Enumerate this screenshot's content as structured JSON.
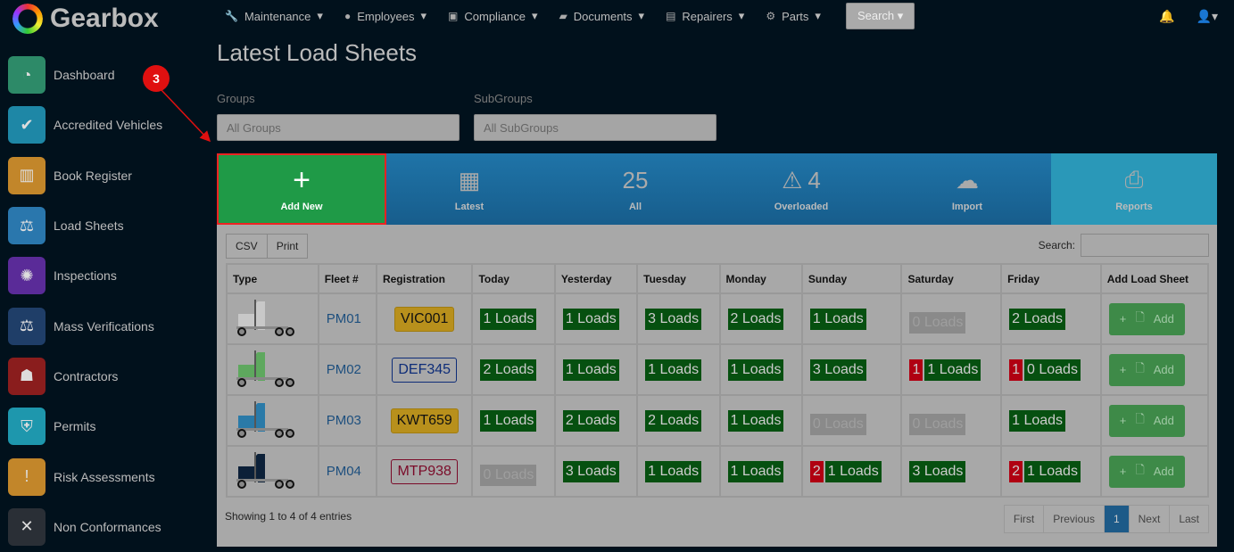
{
  "app": {
    "name": "Gearbox"
  },
  "topnav": [
    {
      "icon": "wrench-icon",
      "glyph": "🔧",
      "label": "Maintenance"
    },
    {
      "icon": "user-icon",
      "glyph": "●",
      "label": "Employees"
    },
    {
      "icon": "calendar-check-icon",
      "glyph": "▣",
      "label": "Compliance"
    },
    {
      "icon": "folder-icon",
      "glyph": "▰",
      "label": "Documents"
    },
    {
      "icon": "id-card-icon",
      "glyph": "▤",
      "label": "Repairers"
    },
    {
      "icon": "gear-icon",
      "glyph": "⚙",
      "label": "Parts"
    }
  ],
  "search_label": "Search",
  "sidebar": [
    {
      "label": "Dashboard",
      "color": "#2d8a68",
      "glyph": "◔"
    },
    {
      "label": "Accredited Vehicles",
      "color": "#1e87a6",
      "glyph": "✔"
    },
    {
      "label": "Book Register",
      "color": "#c2862a",
      "glyph": "▥"
    },
    {
      "label": "Load Sheets",
      "color": "#2a77ad",
      "glyph": "⚖"
    },
    {
      "label": "Inspections",
      "color": "#5a2b98",
      "glyph": "✺"
    },
    {
      "label": "Mass Verifications",
      "color": "#1f3e68",
      "glyph": "⚖"
    },
    {
      "label": "Contractors",
      "color": "#8a1d1d",
      "glyph": "☗"
    },
    {
      "label": "Permits",
      "color": "#1e97ad",
      "glyph": "⛨"
    },
    {
      "label": "Risk Assessments",
      "color": "#c2862a",
      "glyph": "!"
    },
    {
      "label": "Non Conformances",
      "color": "#2a2f36",
      "glyph": "✕"
    }
  ],
  "page_title": "Latest Load Sheets",
  "filters": {
    "groups_label": "Groups",
    "groups_value": "All Groups",
    "subgroups_label": "SubGroups",
    "subgroups_value": "All SubGroups"
  },
  "stats": {
    "add": "Add New",
    "latest": "Latest",
    "all_count": "25",
    "all": "All",
    "overloaded_count": "4",
    "overloaded": "Overloaded",
    "import": "Import",
    "reports": "Reports"
  },
  "step_marker": "3",
  "table": {
    "csv": "CSV",
    "print": "Print",
    "search_label": "Search:",
    "headers": [
      "Type",
      "Fleet #",
      "Registration",
      "Today",
      "Yesterday",
      "Tuesday",
      "Monday",
      "Sunday",
      "Saturday",
      "Friday",
      "Add Load Sheet"
    ],
    "add_label": "Add",
    "rows": [
      {
        "truck": "#c8c8c8",
        "fleet": "PM01",
        "reg": "VIC001",
        "reg_bg": "#b8901c",
        "reg_fg": "#111",
        "reg_border": "#a07c10",
        "days": [
          {
            "n": "1 Loads"
          },
          {
            "n": "1 Loads"
          },
          {
            "n": "3 Loads"
          },
          {
            "n": "2 Loads"
          },
          {
            "n": "1 Loads"
          },
          {
            "n": "0 Loads",
            "zero": true
          },
          {
            "n": "2 Loads"
          }
        ]
      },
      {
        "truck": "#5ea85e",
        "fleet": "PM02",
        "reg": "DEF345",
        "reg_bg": "#a8a8a8",
        "reg_fg": "#0d2c78",
        "reg_border": "#0d2c78",
        "days": [
          {
            "n": "2 Loads"
          },
          {
            "n": "1 Loads"
          },
          {
            "n": "1 Loads"
          },
          {
            "n": "1 Loads"
          },
          {
            "n": "3 Loads"
          },
          {
            "n": "1 Loads",
            "bad": "1"
          },
          {
            "n": "0 Loads",
            "bad": "1"
          }
        ]
      },
      {
        "truck": "#2a7aa8",
        "fleet": "PM03",
        "reg": "KWT659",
        "reg_bg": "#b8901c",
        "reg_fg": "#111",
        "reg_border": "#a07c10",
        "days": [
          {
            "n": "1 Loads"
          },
          {
            "n": "2 Loads"
          },
          {
            "n": "2 Loads"
          },
          {
            "n": "1 Loads"
          },
          {
            "n": "0 Loads",
            "zero": true
          },
          {
            "n": "0 Loads",
            "zero": true
          },
          {
            "n": "1 Loads"
          }
        ]
      },
      {
        "truck": "#0c2038",
        "fleet": "PM04",
        "reg": "MTP938",
        "reg_bg": "#a8a8a8",
        "reg_fg": "#7a0a28",
        "reg_border": "#7a0a28",
        "days": [
          {
            "n": "0 Loads",
            "zero": true
          },
          {
            "n": "3 Loads"
          },
          {
            "n": "1 Loads"
          },
          {
            "n": "1 Loads"
          },
          {
            "n": "1 Loads",
            "bad": "2"
          },
          {
            "n": "3 Loads"
          },
          {
            "n": "1 Loads",
            "bad": "2"
          }
        ]
      }
    ],
    "info": "Showing 1 to 4 of 4 entries",
    "pager": [
      "First",
      "Previous",
      "1",
      "Next",
      "Last"
    ]
  }
}
